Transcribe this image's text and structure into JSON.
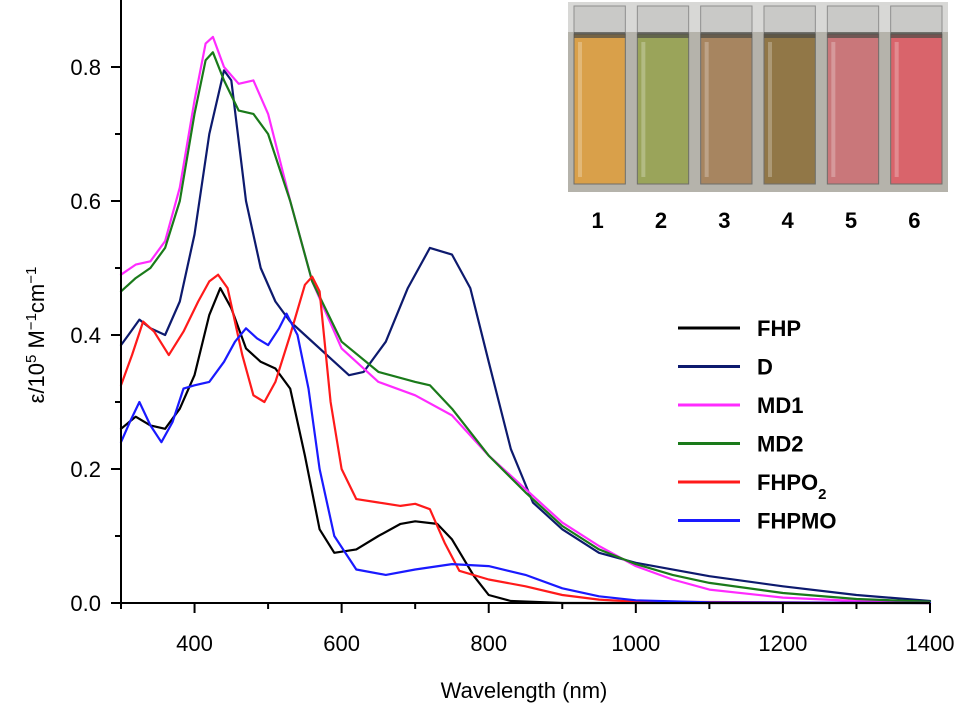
{
  "chart_data": {
    "type": "line",
    "title": "",
    "xlabel": "Wavelength (nm)",
    "ylabel_parts": {
      "prefix": "ε/10",
      "exp1": "5",
      "mid": " M",
      "exp2": "−1",
      "mid2": "cm",
      "exp3": "−1"
    },
    "xlim": [
      300,
      1400
    ],
    "ylim": [
      0,
      0.9
    ],
    "x_ticks": [
      400,
      600,
      800,
      1000,
      1200,
      1400
    ],
    "x_tick_labels": [
      "400",
      "600",
      "800",
      "1000",
      "1200",
      "1400"
    ],
    "x_minor_ticks": [
      300,
      500,
      700,
      900,
      1100,
      1300
    ],
    "y_ticks": [
      0.0,
      0.2,
      0.4,
      0.6,
      0.8
    ],
    "y_tick_labels": [
      "0.0",
      "0.2",
      "0.4",
      "0.6",
      "0.8"
    ],
    "y_minor_ticks": [
      0.1,
      0.3,
      0.5,
      0.7
    ],
    "legend_position": "center-right",
    "series": [
      {
        "name": "FHP",
        "label_main": "FHP",
        "label_sub": "",
        "color": "#000000",
        "points": [
          [
            300,
            0.26
          ],
          [
            320,
            0.278
          ],
          [
            340,
            0.265
          ],
          [
            360,
            0.26
          ],
          [
            380,
            0.29
          ],
          [
            400,
            0.34
          ],
          [
            420,
            0.43
          ],
          [
            435,
            0.47
          ],
          [
            450,
            0.44
          ],
          [
            470,
            0.38
          ],
          [
            490,
            0.36
          ],
          [
            510,
            0.35
          ],
          [
            530,
            0.32
          ],
          [
            550,
            0.22
          ],
          [
            570,
            0.11
          ],
          [
            590,
            0.075
          ],
          [
            620,
            0.08
          ],
          [
            650,
            0.1
          ],
          [
            680,
            0.118
          ],
          [
            700,
            0.122
          ],
          [
            730,
            0.118
          ],
          [
            750,
            0.095
          ],
          [
            780,
            0.04
          ],
          [
            800,
            0.012
          ],
          [
            830,
            0.003
          ],
          [
            900,
            0.0
          ],
          [
            1400,
            0.0
          ]
        ]
      },
      {
        "name": "D",
        "label_main": "D",
        "label_sub": "",
        "color": "#0d1a6e",
        "points": [
          [
            300,
            0.385
          ],
          [
            310,
            0.4
          ],
          [
            325,
            0.423
          ],
          [
            340,
            0.41
          ],
          [
            360,
            0.4
          ],
          [
            380,
            0.45
          ],
          [
            400,
            0.55
          ],
          [
            420,
            0.7
          ],
          [
            440,
            0.795
          ],
          [
            450,
            0.78
          ],
          [
            470,
            0.6
          ],
          [
            490,
            0.5
          ],
          [
            510,
            0.45
          ],
          [
            530,
            0.42
          ],
          [
            550,
            0.4
          ],
          [
            580,
            0.37
          ],
          [
            610,
            0.34
          ],
          [
            630,
            0.345
          ],
          [
            660,
            0.39
          ],
          [
            690,
            0.47
          ],
          [
            720,
            0.53
          ],
          [
            750,
            0.52
          ],
          [
            775,
            0.47
          ],
          [
            800,
            0.36
          ],
          [
            830,
            0.23
          ],
          [
            860,
            0.15
          ],
          [
            900,
            0.11
          ],
          [
            950,
            0.075
          ],
          [
            1000,
            0.06
          ],
          [
            1100,
            0.04
          ],
          [
            1200,
            0.025
          ],
          [
            1300,
            0.012
          ],
          [
            1400,
            0.003
          ]
        ]
      },
      {
        "name": "MD1",
        "label_main": "MD1",
        "label_sub": "",
        "color": "#ff2bff",
        "points": [
          [
            300,
            0.49
          ],
          [
            320,
            0.505
          ],
          [
            340,
            0.51
          ],
          [
            360,
            0.54
          ],
          [
            380,
            0.62
          ],
          [
            400,
            0.75
          ],
          [
            415,
            0.835
          ],
          [
            425,
            0.845
          ],
          [
            440,
            0.8
          ],
          [
            460,
            0.775
          ],
          [
            480,
            0.78
          ],
          [
            500,
            0.73
          ],
          [
            530,
            0.6
          ],
          [
            560,
            0.48
          ],
          [
            600,
            0.38
          ],
          [
            650,
            0.33
          ],
          [
            700,
            0.31
          ],
          [
            750,
            0.28
          ],
          [
            800,
            0.22
          ],
          [
            850,
            0.17
          ],
          [
            900,
            0.12
          ],
          [
            950,
            0.085
          ],
          [
            1000,
            0.055
          ],
          [
            1050,
            0.035
          ],
          [
            1100,
            0.02
          ],
          [
            1200,
            0.008
          ],
          [
            1300,
            0.003
          ],
          [
            1400,
            0.0
          ]
        ]
      },
      {
        "name": "MD2",
        "label_main": "MD2",
        "label_sub": "",
        "color": "#1a7a1a",
        "points": [
          [
            300,
            0.465
          ],
          [
            320,
            0.485
          ],
          [
            340,
            0.5
          ],
          [
            360,
            0.53
          ],
          [
            380,
            0.6
          ],
          [
            400,
            0.73
          ],
          [
            415,
            0.81
          ],
          [
            425,
            0.822
          ],
          [
            440,
            0.78
          ],
          [
            460,
            0.735
          ],
          [
            480,
            0.73
          ],
          [
            500,
            0.7
          ],
          [
            530,
            0.6
          ],
          [
            560,
            0.48
          ],
          [
            600,
            0.39
          ],
          [
            650,
            0.345
          ],
          [
            700,
            0.33
          ],
          [
            720,
            0.325
          ],
          [
            750,
            0.29
          ],
          [
            800,
            0.22
          ],
          [
            850,
            0.165
          ],
          [
            900,
            0.115
          ],
          [
            950,
            0.08
          ],
          [
            1000,
            0.058
          ],
          [
            1050,
            0.042
          ],
          [
            1100,
            0.03
          ],
          [
            1200,
            0.015
          ],
          [
            1300,
            0.006
          ],
          [
            1400,
            0.002
          ]
        ]
      },
      {
        "name": "FHPO2",
        "label_main": "FHPO",
        "label_sub": "2",
        "color": "#ff1a1a",
        "points": [
          [
            300,
            0.325
          ],
          [
            315,
            0.37
          ],
          [
            330,
            0.42
          ],
          [
            345,
            0.405
          ],
          [
            365,
            0.37
          ],
          [
            385,
            0.405
          ],
          [
            405,
            0.45
          ],
          [
            420,
            0.48
          ],
          [
            432,
            0.49
          ],
          [
            445,
            0.47
          ],
          [
            465,
            0.37
          ],
          [
            480,
            0.31
          ],
          [
            495,
            0.3
          ],
          [
            510,
            0.33
          ],
          [
            530,
            0.4
          ],
          [
            550,
            0.475
          ],
          [
            560,
            0.487
          ],
          [
            570,
            0.465
          ],
          [
            585,
            0.3
          ],
          [
            600,
            0.2
          ],
          [
            620,
            0.155
          ],
          [
            650,
            0.15
          ],
          [
            680,
            0.145
          ],
          [
            700,
            0.148
          ],
          [
            720,
            0.14
          ],
          [
            740,
            0.09
          ],
          [
            760,
            0.048
          ],
          [
            800,
            0.035
          ],
          [
            850,
            0.025
          ],
          [
            900,
            0.012
          ],
          [
            950,
            0.005
          ],
          [
            1000,
            0.002
          ],
          [
            1400,
            0.0
          ]
        ]
      },
      {
        "name": "FHPMO",
        "label_main": "FHPMO",
        "label_sub": "",
        "color": "#1a1aff",
        "points": [
          [
            300,
            0.24
          ],
          [
            312,
            0.27
          ],
          [
            325,
            0.3
          ],
          [
            340,
            0.265
          ],
          [
            355,
            0.24
          ],
          [
            370,
            0.27
          ],
          [
            385,
            0.32
          ],
          [
            400,
            0.325
          ],
          [
            420,
            0.33
          ],
          [
            440,
            0.36
          ],
          [
            455,
            0.39
          ],
          [
            470,
            0.41
          ],
          [
            485,
            0.395
          ],
          [
            500,
            0.385
          ],
          [
            515,
            0.41
          ],
          [
            525,
            0.432
          ],
          [
            540,
            0.4
          ],
          [
            555,
            0.32
          ],
          [
            570,
            0.2
          ],
          [
            590,
            0.1
          ],
          [
            620,
            0.05
          ],
          [
            660,
            0.042
          ],
          [
            700,
            0.05
          ],
          [
            750,
            0.058
          ],
          [
            800,
            0.055
          ],
          [
            850,
            0.042
          ],
          [
            900,
            0.022
          ],
          [
            950,
            0.01
          ],
          [
            1000,
            0.004
          ],
          [
            1100,
            0.001
          ],
          [
            1400,
            0.0
          ]
        ]
      }
    ],
    "inset": {
      "labels": [
        "1",
        "2",
        "3",
        "4",
        "5",
        "6"
      ],
      "vial_colors": [
        "#d9a04a",
        "#9aa45a",
        "#a78560",
        "#917747",
        "#c9777a",
        "#d9646b"
      ],
      "background": "#b5b3ab"
    }
  }
}
